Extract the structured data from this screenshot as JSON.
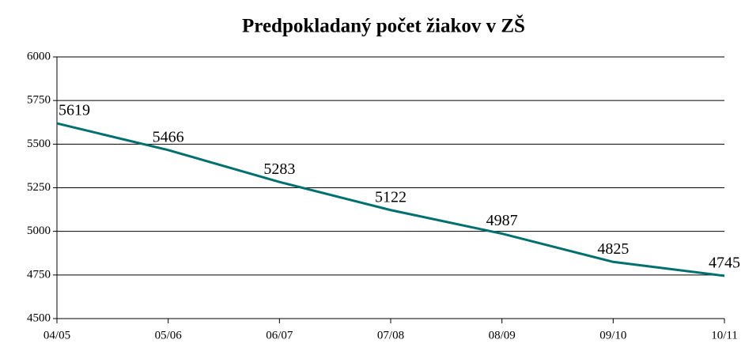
{
  "chart_data": {
    "type": "line",
    "title": "Predpokladaný počet žiakov v ZŠ",
    "categories": [
      "04/05",
      "05/06",
      "06/07",
      "07/08",
      "08/09",
      "09/10",
      "10/11"
    ],
    "values": [
      5619,
      5466,
      5283,
      5122,
      4987,
      4825,
      4745
    ],
    "color": "#006f6f",
    "ylim": [
      4500,
      6000
    ],
    "yticks": [
      4500,
      4750,
      5000,
      5250,
      5500,
      5750,
      6000
    ],
    "grid": true
  }
}
